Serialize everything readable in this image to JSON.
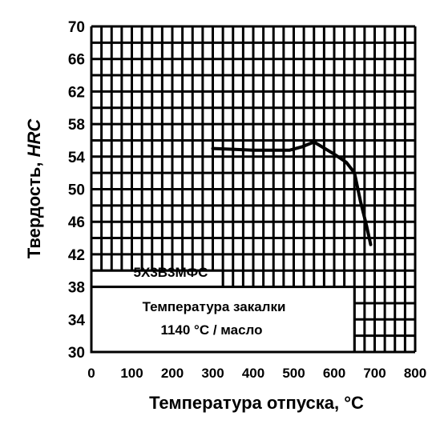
{
  "chart_data": {
    "type": "line",
    "xlabel": "Температура отпуска, °С",
    "ylabel_prefix": "Твердость, ",
    "ylabel_unit": "HRC",
    "xlim": [
      0,
      800
    ],
    "ylim": [
      30,
      70
    ],
    "x_ticks": [
      0,
      100,
      200,
      300,
      400,
      500,
      600,
      700,
      800
    ],
    "y_ticks": [
      30,
      34,
      38,
      42,
      46,
      50,
      54,
      58,
      62,
      66,
      70
    ],
    "grid": true,
    "series": [
      {
        "x": [
          300,
          350,
          400,
          450,
          490,
          520,
          550,
          580,
          600,
          630,
          650,
          665,
          680,
          690
        ],
        "y": [
          55.0,
          54.9,
          54.8,
          54.8,
          54.8,
          55.2,
          55.8,
          54.9,
          54.3,
          53.3,
          52.0,
          48.5,
          45.5,
          43.2
        ]
      }
    ],
    "annotations": {
      "steel_grade": "5Х3В3МФС",
      "quench_line1": "Температура закалки",
      "quench_line2": "1140 °С / масло"
    },
    "colors": {
      "line": "#000000",
      "grid": "#000000",
      "background": "#ffffff"
    }
  }
}
